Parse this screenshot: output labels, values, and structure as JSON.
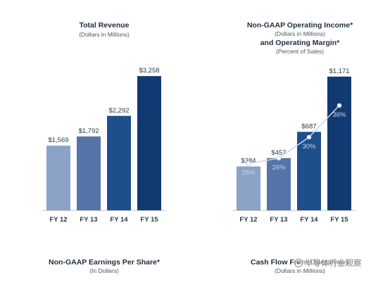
{
  "chart_data": [
    {
      "type": "bar",
      "title": "Total Revenue",
      "subtitle": "(Dollars in Millions)",
      "categories": [
        "FY 12",
        "FY 13",
        "FY 14",
        "FY 15"
      ],
      "values": [
        1569,
        1792,
        2292,
        3258
      ],
      "value_labels": [
        "$1,569",
        "$1,792",
        "$2,292",
        "$3,258"
      ],
      "colors": [
        "#8aa3c6",
        "#5574a8",
        "#1f4e8c",
        "#123a72"
      ],
      "ylim": [
        0,
        3500
      ],
      "grid": false
    },
    {
      "type": "bar",
      "title": "Non-GAAP Operating Income*",
      "subtitle": "(Dollars in Millions)",
      "title2": "and Operating Margin*",
      "subtitle2": "(Percent of Sales)",
      "categories": [
        "FY 12",
        "FY 13",
        "FY 14",
        "FY 15"
      ],
      "values": [
        384,
        457,
        687,
        1171
      ],
      "value_labels": [
        "$384",
        "$457",
        "$687",
        "$1,171"
      ],
      "colors": [
        "#8aa3c6",
        "#5574a8",
        "#1f4e8c",
        "#123a72"
      ],
      "series": [
        {
          "values": [
            25,
            26,
            30,
            36
          ],
          "labels": [
            "25%",
            "26%",
            "30%",
            "36%"
          ]
        }
      ],
      "ylim": [
        0,
        1300
      ],
      "grid": false
    },
    {
      "type": "bar",
      "title": "Non-GAAP Earnings Per Share*",
      "subtitle": "(In Dollars)"
    },
    {
      "type": "bar",
      "title": "Cash Flow From Operations",
      "subtitle": "(Dollars in Millions)"
    }
  ],
  "watermark": {
    "text": "半导体行业观察"
  },
  "colors": {
    "axis": "#c8c8c8",
    "label_dark": "#2b3a4a",
    "line": "#c9d6e8",
    "percent": "#c9d6e8"
  }
}
